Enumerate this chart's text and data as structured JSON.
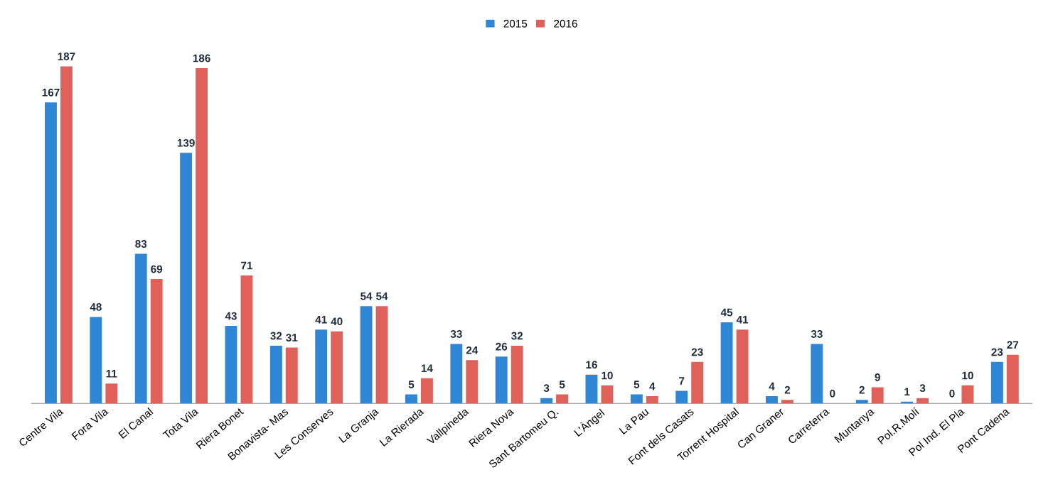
{
  "chart_data": {
    "type": "bar",
    "categories": [
      "Centre Vila",
      "Fora Vila",
      "El Canal",
      "Tota Vila",
      "Riera Bonet",
      "Bonavista- Mas",
      "Les Conserves",
      "La Granja",
      "La Rierada",
      "Vallpineda",
      "Riera Nova",
      "Sant Bartomeu Q.",
      "L'Àngel",
      "La Pau",
      "Font dels Casats",
      "Torrent Hospital",
      "Can Graner",
      "Carreterra",
      "Muntanya",
      "Pol.R.Molí",
      "Pol Ind. El Pla",
      "Pont Cadena"
    ],
    "series": [
      {
        "name": "2015",
        "color": "#2e86d4",
        "values": [
          167,
          48,
          83,
          139,
          43,
          32,
          41,
          54,
          5,
          33,
          26,
          3,
          16,
          5,
          7,
          45,
          4,
          33,
          2,
          1,
          0,
          23
        ]
      },
      {
        "name": "2016",
        "color": "#e0615a",
        "values": [
          187,
          11,
          69,
          186,
          71,
          31,
          40,
          54,
          14,
          24,
          32,
          5,
          10,
          4,
          23,
          41,
          2,
          0,
          9,
          3,
          10,
          27
        ]
      }
    ],
    "data_labels": true,
    "legend": "top",
    "grid": false,
    "tick_labels": "x"
  }
}
